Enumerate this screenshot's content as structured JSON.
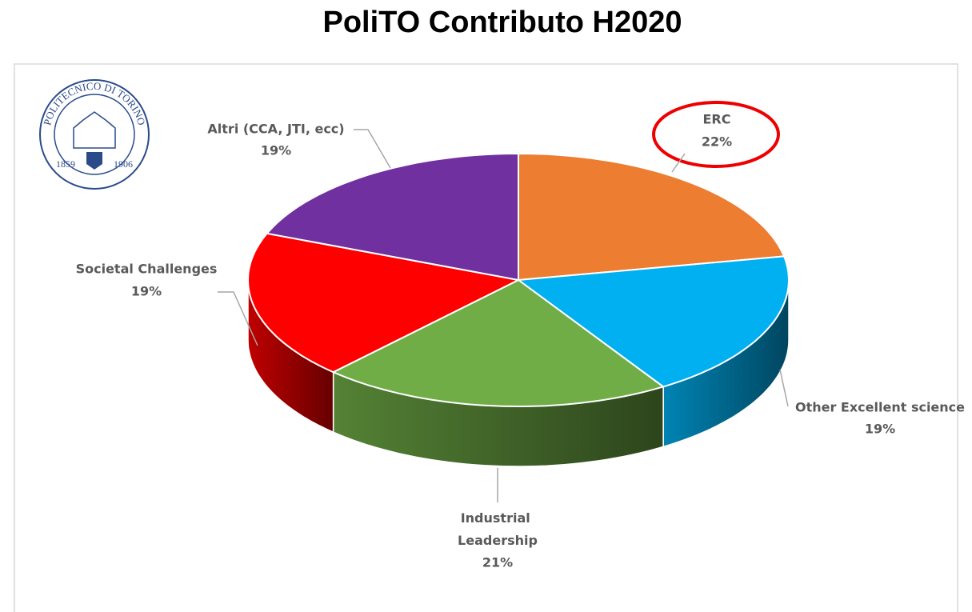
{
  "chart_data": {
    "type": "pie3d",
    "title": "PoliTO Contributo H2020",
    "categories": [
      "ERC",
      "Other Excellent science",
      "Industrial Leadership",
      "Societal Challenges",
      "Altri (CCA, JTI, ecc)"
    ],
    "values": [
      22,
      19,
      21,
      19,
      19
    ],
    "value_labels": [
      "22%",
      "19%",
      "21%",
      "19%",
      "19%"
    ],
    "colors": [
      "#ed7d31",
      "#00b0f0",
      "#70ad47",
      "#ff0000",
      "#7030a0"
    ]
  },
  "logo": {
    "name": "POLITECNICO DI TORINO",
    "years": [
      "1859",
      "1906"
    ]
  }
}
